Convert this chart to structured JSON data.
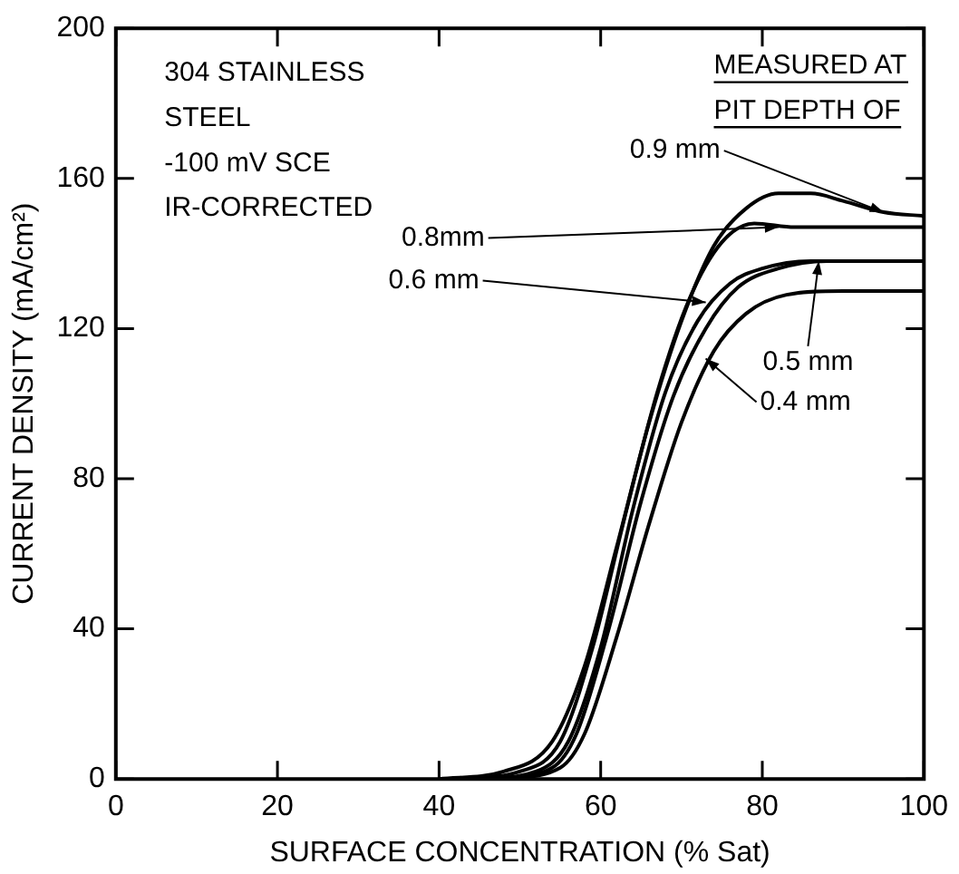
{
  "chart_data": {
    "type": "line",
    "xlabel": "SURFACE CONCENTRATION (% Sat)",
    "ylabel": "CURRENT DENSITY (mA/cm²)",
    "xlim": [
      0,
      100
    ],
    "xticks": [
      0,
      20,
      40,
      60,
      80,
      100
    ],
    "ylim": [
      0,
      200
    ],
    "yticks": [
      0,
      40,
      80,
      120,
      160,
      200
    ],
    "grid": false,
    "legend": false,
    "marker": "none",
    "line_style": "solid",
    "series": [
      {
        "color": "#000000",
        "x": [
          40,
          48,
          54,
          58,
          62,
          66,
          70,
          74,
          78,
          82,
          86,
          90,
          95,
          100
        ],
        "values": [
          0,
          2,
          10,
          30,
          62,
          95,
          122,
          142,
          152,
          156,
          156,
          154,
          151,
          150
        ]
      },
      {
        "color": "#000000",
        "x": [
          42,
          50,
          55,
          59,
          63,
          67,
          71,
          75,
          79,
          84,
          90,
          100
        ],
        "values": [
          0,
          2,
          10,
          35,
          70,
          103,
          128,
          143,
          148,
          147,
          147,
          147
        ]
      },
      {
        "color": "#000000",
        "x": [
          45,
          52,
          56,
          60,
          64,
          68,
          72,
          76,
          80,
          86,
          100
        ],
        "values": [
          0,
          2,
          10,
          35,
          72,
          103,
          122,
          132,
          136,
          138,
          138
        ]
      },
      {
        "color": "#000000",
        "x": [
          47,
          54,
          57,
          61,
          65,
          69,
          73,
          77,
          82,
          88,
          100
        ],
        "values": [
          0,
          3,
          12,
          40,
          74,
          102,
          120,
          131,
          136,
          138,
          138
        ]
      },
      {
        "color": "#000000",
        "x": [
          48,
          55,
          58,
          62,
          66,
          70,
          74,
          78,
          83,
          90,
          100
        ],
        "values": [
          0,
          3,
          12,
          38,
          68,
          95,
          114,
          124,
          129,
          130,
          130
        ]
      }
    ],
    "annotations": [
      "304 STAINLESS",
      "STEEL",
      "-100 mV SCE",
      "IR-CORRECTED",
      "MEASURED AT",
      "PIT DEPTH OF",
      {
        "text": "0.9 mm",
        "x": 95,
        "y": 151
      },
      {
        "text": "0.8mm",
        "x": 82,
        "y": 147
      },
      {
        "text": "0.6 mm",
        "x": 73,
        "y": 127
      },
      {
        "text": "0.5 mm",
        "x": 87,
        "y": 138
      },
      {
        "text": "0.4 mm",
        "x": 73,
        "y": 112
      }
    ]
  }
}
